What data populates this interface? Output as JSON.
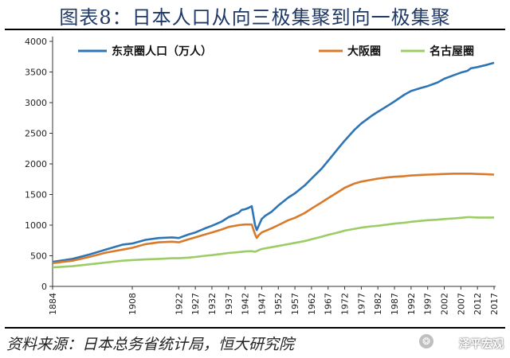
{
  "header": {
    "title": "图表8：日本人口从向三极集聚到向一极集聚"
  },
  "footer": {
    "source": "资料来源：日本总务省统计局，恒大研究院",
    "watermark": "泽平宏观"
  },
  "colors": {
    "tokyo": "#2e75b6",
    "osaka": "#d97a2b",
    "nagoya": "#9ccc65"
  },
  "chart_data": {
    "type": "line",
    "title": "",
    "xlabel": "",
    "ylabel": "",
    "ylim": [
      0,
      4000
    ],
    "yticks": [
      0,
      500,
      1000,
      1500,
      2000,
      2500,
      3000,
      3500,
      4000
    ],
    "xlim": [
      1884,
      2017
    ],
    "xticks": [
      1884,
      1908,
      1922,
      1927,
      1932,
      1937,
      1942,
      1947,
      1952,
      1957,
      1962,
      1967,
      1972,
      1977,
      1982,
      1987,
      1992,
      1997,
      2002,
      2007,
      2012,
      2017
    ],
    "legend_position": "top",
    "grid": false,
    "series": [
      {
        "name": "东京圈人口（万人）",
        "color_key": "tokyo",
        "points": [
          [
            1884,
            400
          ],
          [
            1890,
            450
          ],
          [
            1895,
            520
          ],
          [
            1900,
            600
          ],
          [
            1905,
            680
          ],
          [
            1908,
            700
          ],
          [
            1912,
            760
          ],
          [
            1916,
            790
          ],
          [
            1920,
            800
          ],
          [
            1922,
            790
          ],
          [
            1925,
            850
          ],
          [
            1927,
            880
          ],
          [
            1930,
            950
          ],
          [
            1932,
            990
          ],
          [
            1935,
            1060
          ],
          [
            1937,
            1130
          ],
          [
            1940,
            1200
          ],
          [
            1941,
            1250
          ],
          [
            1942,
            1260
          ],
          [
            1943,
            1280
          ],
          [
            1944,
            1310
          ],
          [
            1945,
            1000
          ],
          [
            1945.5,
            920
          ],
          [
            1946,
            980
          ],
          [
            1947,
            1100
          ],
          [
            1948,
            1150
          ],
          [
            1950,
            1220
          ],
          [
            1952,
            1320
          ],
          [
            1955,
            1450
          ],
          [
            1957,
            1520
          ],
          [
            1960,
            1650
          ],
          [
            1962,
            1760
          ],
          [
            1965,
            1920
          ],
          [
            1967,
            2050
          ],
          [
            1970,
            2250
          ],
          [
            1972,
            2380
          ],
          [
            1975,
            2560
          ],
          [
            1977,
            2660
          ],
          [
            1980,
            2780
          ],
          [
            1982,
            2850
          ],
          [
            1985,
            2950
          ],
          [
            1987,
            3020
          ],
          [
            1990,
            3130
          ],
          [
            1992,
            3190
          ],
          [
            1995,
            3240
          ],
          [
            1997,
            3270
          ],
          [
            2000,
            3330
          ],
          [
            2002,
            3390
          ],
          [
            2005,
            3450
          ],
          [
            2007,
            3490
          ],
          [
            2009,
            3520
          ],
          [
            2010,
            3560
          ],
          [
            2012,
            3580
          ],
          [
            2015,
            3620
          ],
          [
            2017,
            3650
          ]
        ]
      },
      {
        "name": "大阪圈",
        "color_key": "osaka",
        "points": [
          [
            1884,
            380
          ],
          [
            1890,
            420
          ],
          [
            1895,
            480
          ],
          [
            1900,
            550
          ],
          [
            1905,
            600
          ],
          [
            1908,
            630
          ],
          [
            1912,
            690
          ],
          [
            1916,
            720
          ],
          [
            1920,
            730
          ],
          [
            1922,
            720
          ],
          [
            1925,
            770
          ],
          [
            1927,
            800
          ],
          [
            1930,
            850
          ],
          [
            1932,
            880
          ],
          [
            1935,
            930
          ],
          [
            1937,
            970
          ],
          [
            1940,
            1000
          ],
          [
            1942,
            1010
          ],
          [
            1944,
            1010
          ],
          [
            1945,
            850
          ],
          [
            1945.5,
            790
          ],
          [
            1946,
            830
          ],
          [
            1947,
            880
          ],
          [
            1950,
            950
          ],
          [
            1952,
            1000
          ],
          [
            1955,
            1080
          ],
          [
            1957,
            1120
          ],
          [
            1960,
            1200
          ],
          [
            1962,
            1270
          ],
          [
            1965,
            1370
          ],
          [
            1967,
            1440
          ],
          [
            1970,
            1540
          ],
          [
            1972,
            1610
          ],
          [
            1975,
            1680
          ],
          [
            1977,
            1710
          ],
          [
            1980,
            1740
          ],
          [
            1982,
            1760
          ],
          [
            1985,
            1780
          ],
          [
            1987,
            1790
          ],
          [
            1990,
            1800
          ],
          [
            1992,
            1810
          ],
          [
            1995,
            1820
          ],
          [
            1997,
            1825
          ],
          [
            2000,
            1830
          ],
          [
            2002,
            1835
          ],
          [
            2005,
            1840
          ],
          [
            2007,
            1840
          ],
          [
            2010,
            1840
          ],
          [
            2012,
            1835
          ],
          [
            2015,
            1830
          ],
          [
            2017,
            1825
          ]
        ]
      },
      {
        "name": "名古屋圈",
        "color_key": "nagoya",
        "points": [
          [
            1884,
            310
          ],
          [
            1890,
            330
          ],
          [
            1895,
            360
          ],
          [
            1900,
            390
          ],
          [
            1905,
            420
          ],
          [
            1908,
            430
          ],
          [
            1912,
            440
          ],
          [
            1916,
            450
          ],
          [
            1920,
            460
          ],
          [
            1922,
            460
          ],
          [
            1925,
            470
          ],
          [
            1927,
            480
          ],
          [
            1930,
            500
          ],
          [
            1932,
            510
          ],
          [
            1935,
            530
          ],
          [
            1937,
            545
          ],
          [
            1940,
            560
          ],
          [
            1942,
            570
          ],
          [
            1944,
            575
          ],
          [
            1945,
            565
          ],
          [
            1946,
            590
          ],
          [
            1947,
            610
          ],
          [
            1950,
            640
          ],
          [
            1952,
            660
          ],
          [
            1955,
            690
          ],
          [
            1957,
            710
          ],
          [
            1960,
            740
          ],
          [
            1962,
            770
          ],
          [
            1965,
            810
          ],
          [
            1967,
            840
          ],
          [
            1970,
            880
          ],
          [
            1972,
            910
          ],
          [
            1975,
            940
          ],
          [
            1977,
            960
          ],
          [
            1980,
            980
          ],
          [
            1982,
            990
          ],
          [
            1985,
            1010
          ],
          [
            1987,
            1025
          ],
          [
            1990,
            1040
          ],
          [
            1992,
            1055
          ],
          [
            1995,
            1070
          ],
          [
            1997,
            1080
          ],
          [
            2000,
            1090
          ],
          [
            2002,
            1100
          ],
          [
            2005,
            1110
          ],
          [
            2007,
            1120
          ],
          [
            2009,
            1130
          ],
          [
            2010,
            1130
          ],
          [
            2012,
            1125
          ],
          [
            2015,
            1125
          ],
          [
            2017,
            1125
          ]
        ]
      }
    ]
  }
}
